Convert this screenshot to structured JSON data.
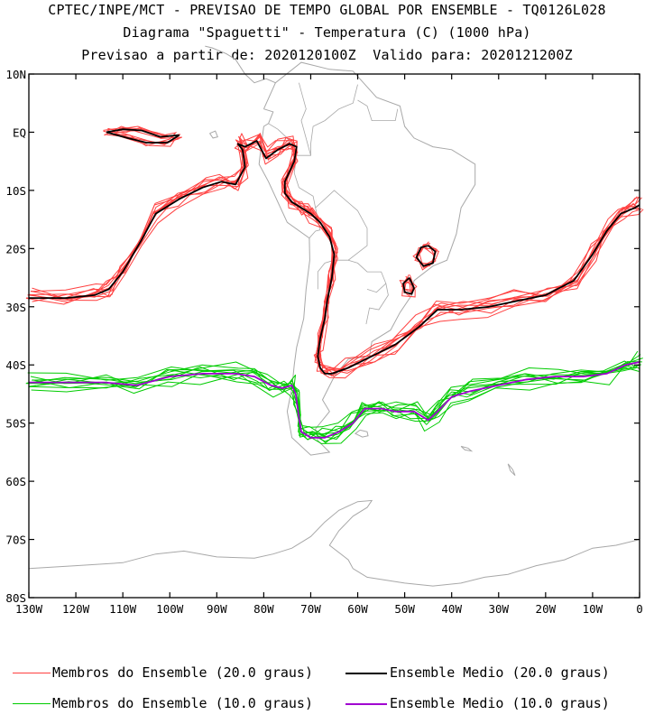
{
  "header": {
    "line1": "CPTEC/INPE/MCT - PREVISAO DE TEMPO GLOBAL POR ENSEMBLE - TQ0126L028",
    "line2": "Diagrama \"Spaguetti\" - Temperatura (C) (1000 hPa)",
    "line3": "Previsao a partir de: 2020120100Z  Valido para: 2020121200Z"
  },
  "legend": {
    "members20": "Membros do Ensemble (20.0 graus)",
    "mean20": "Ensemble Medio (20.0 graus)",
    "members10": "Membros do Ensemble (10.0 graus)",
    "mean10": "Ensemble Medio (10.0 graus)"
  },
  "colors": {
    "members20": "#ff4040",
    "mean20": "#000000",
    "members10": "#00cc00",
    "mean10": "#a000d0",
    "coast": "#a8a8a8"
  },
  "chart_data": {
    "type": "line",
    "title": "Diagrama \"Spaguetti\" - Temperatura (C) (1000 hPa)",
    "xlabel": "",
    "ylabel": "",
    "xlim": [
      -130,
      0
    ],
    "ylim": [
      -80,
      10
    ],
    "x_ticks": [
      "130W",
      "120W",
      "110W",
      "100W",
      "90W",
      "80W",
      "70W",
      "60W",
      "50W",
      "40W",
      "30W",
      "20W",
      "10W",
      "0"
    ],
    "y_ticks": [
      "10N",
      "EQ",
      "10S",
      "20S",
      "30S",
      "40S",
      "50S",
      "60S",
      "70S",
      "80S"
    ],
    "legend_position": "bottom",
    "series": [
      {
        "name": "Ensemble Medio (20.0 graus)",
        "x": [
          -130,
          -122,
          -116,
          -113,
          -110,
          -106,
          -103,
          -98,
          -93,
          -89,
          -86,
          -84,
          -84.5,
          -85.5,
          -84,
          -81.5,
          -79.5,
          -77,
          -74.5,
          -73,
          -73.5,
          -75.5,
          -75.5,
          -74,
          -72,
          -70,
          -68,
          -66,
          -65,
          -65.5,
          -66.5,
          -67,
          -68,
          -68.5,
          -68,
          -67,
          -65.5,
          -62,
          -57,
          -52,
          -47,
          -43,
          -38,
          -32,
          -26,
          -20,
          -14,
          -10,
          -7,
          -4,
          -1,
          0
        ],
        "y": [
          -28.5,
          -28.5,
          -28,
          -27,
          -24,
          -18.5,
          -14,
          -11.5,
          -9.5,
          -8.5,
          -9,
          -6,
          -3,
          -2,
          -2.5,
          -1.5,
          -4.5,
          -3,
          -2,
          -2.5,
          -5,
          -8.5,
          -10.5,
          -12,
          -13,
          -14,
          -15.5,
          -18,
          -21,
          -25,
          -29,
          -32,
          -35.5,
          -38.5,
          -40.5,
          -41.5,
          -41.5,
          -40.5,
          -38.5,
          -36.5,
          -33.5,
          -30.5,
          -30.5,
          -30,
          -29,
          -28,
          -25.5,
          -21,
          -17,
          -14,
          -13,
          -12.5
        ]
      },
      {
        "name": "Ensemble Medio (10.0 graus)",
        "x": [
          -130,
          -122,
          -114,
          -107,
          -100,
          -93,
          -86,
          -82,
          -78.5,
          -76,
          -74,
          -73.2,
          -72.5,
          -72,
          -70,
          -67,
          -64,
          -61,
          -58.5,
          -55,
          -52,
          -48,
          -45,
          -43,
          -40,
          -36,
          -30,
          -24,
          -18,
          -12,
          -7,
          -3,
          0
        ],
        "y": [
          -43,
          -43,
          -43,
          -43.5,
          -42,
          -41.5,
          -41.5,
          -42,
          -43.5,
          -44,
          -43.5,
          -45,
          -49,
          -51.5,
          -52.5,
          -52.5,
          -51.5,
          -50,
          -47.5,
          -47.5,
          -48,
          -48,
          -49.5,
          -48,
          -45.5,
          -44.5,
          -43.5,
          -42.5,
          -42,
          -42,
          -41.5,
          -40,
          -39.5
        ]
      }
    ],
    "annotations": []
  }
}
